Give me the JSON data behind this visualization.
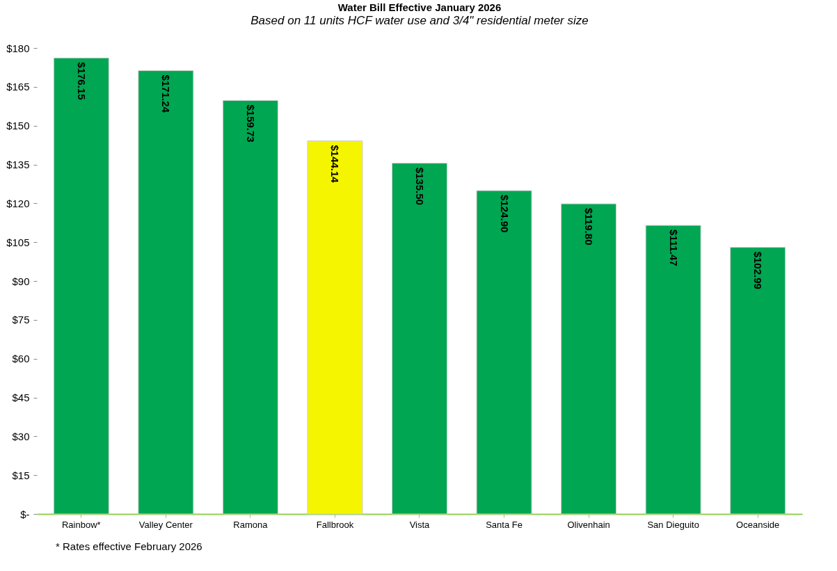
{
  "chart_data": {
    "type": "bar",
    "title": "Water Bill Effective January 2026",
    "subtitle": "Based on 11 units HCF water use and 3/4\" residential meter size",
    "categories": [
      "Rainbow*",
      "Valley Center",
      "Ramona",
      "Fallbrook",
      "Vista",
      "Santa Fe",
      "Olivenhain",
      "San Dieguito",
      "Oceanside"
    ],
    "values": [
      176.15,
      171.24,
      159.73,
      144.14,
      135.5,
      124.9,
      119.8,
      111.47,
      102.99
    ],
    "value_labels": [
      "$176.15",
      "$171.24",
      "$159.73",
      "$144.14",
      "$135.50",
      "$124.90",
      "$119.80",
      "$111.47",
      "$102.99"
    ],
    "colors": [
      "#00a651",
      "#00a651",
      "#00a651",
      "#f5f500",
      "#00a651",
      "#00a651",
      "#00a651",
      "#00a651",
      "#00a651"
    ],
    "ylim": [
      0,
      180
    ],
    "yticks": [
      {
        "value": 0,
        "label": "$-"
      },
      {
        "value": 15,
        "label": "$15"
      },
      {
        "value": 30,
        "label": "$30"
      },
      {
        "value": 45,
        "label": "$45"
      },
      {
        "value": 60,
        "label": "$60"
      },
      {
        "value": 75,
        "label": "$75"
      },
      {
        "value": 90,
        "label": "$90"
      },
      {
        "value": 105,
        "label": "$105"
      },
      {
        "value": 120,
        "label": "$120"
      },
      {
        "value": 135,
        "label": "$135"
      },
      {
        "value": 150,
        "label": "$150"
      },
      {
        "value": 165,
        "label": "$165"
      },
      {
        "value": 180,
        "label": "$180"
      }
    ],
    "grid": false,
    "annotations": [
      "* Rates effective February 2026"
    ]
  }
}
